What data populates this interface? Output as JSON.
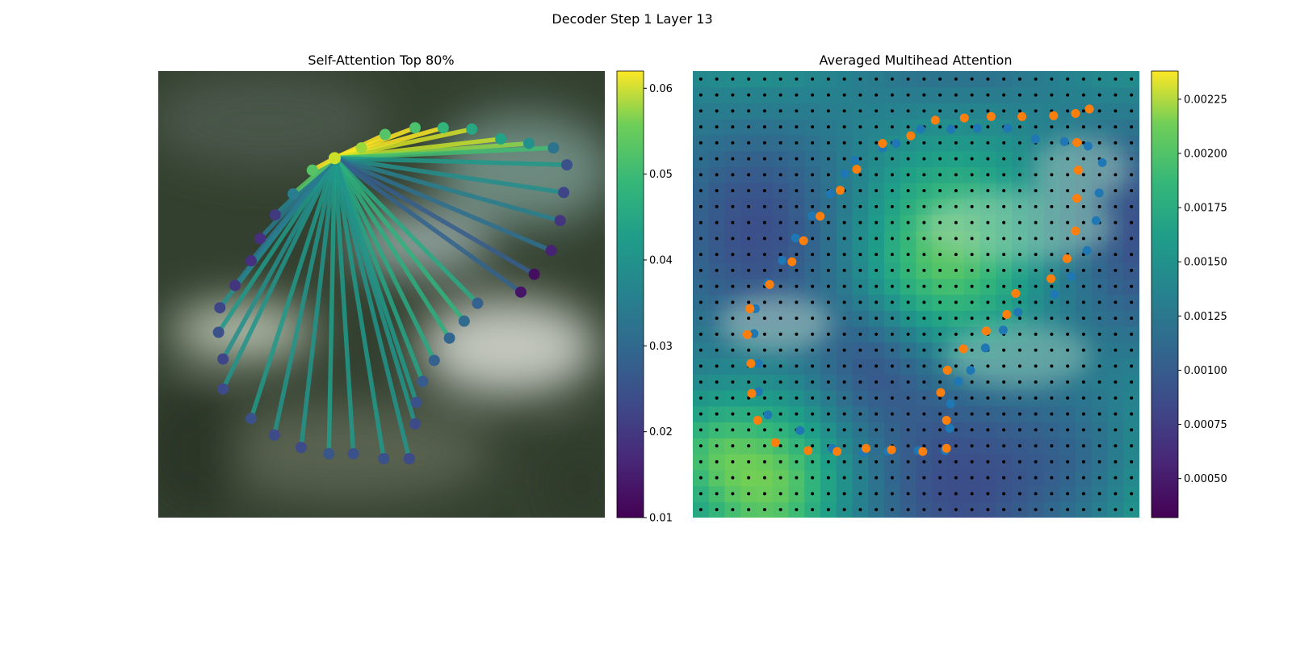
{
  "figure": {
    "title": "Decoder Step 1 Layer 13"
  },
  "chart_data": [
    {
      "type": "scatter",
      "title": "Self-Attention Top 80%",
      "description": "Attention lines from the query point to predicted keypoints over a blurred image background, colored by attention weight (viridis).",
      "colormap": "viridis",
      "colorbar": {
        "min": 0.01,
        "max": 0.062,
        "ticks": [
          0.01,
          0.02,
          0.03,
          0.04,
          0.05,
          0.06
        ],
        "tick_labels": [
          "0.01",
          "0.02",
          "0.03",
          "0.04",
          "0.05",
          "0.06"
        ]
      },
      "axes_visible": false,
      "query_point": {
        "x": 0.395,
        "y": 0.805,
        "value": 0.058
      },
      "points": [
        {
          "x": 0.455,
          "y": 0.828,
          "value": 0.054
        },
        {
          "x": 0.508,
          "y": 0.858,
          "value": 0.048
        },
        {
          "x": 0.575,
          "y": 0.873,
          "value": 0.047
        },
        {
          "x": 0.638,
          "y": 0.873,
          "value": 0.044
        },
        {
          "x": 0.702,
          "y": 0.87,
          "value": 0.041
        },
        {
          "x": 0.767,
          "y": 0.848,
          "value": 0.04
        },
        {
          "x": 0.83,
          "y": 0.838,
          "value": 0.036
        },
        {
          "x": 0.885,
          "y": 0.828,
          "value": 0.03
        },
        {
          "x": 0.915,
          "y": 0.79,
          "value": 0.023
        },
        {
          "x": 0.908,
          "y": 0.728,
          "value": 0.021
        },
        {
          "x": 0.9,
          "y": 0.665,
          "value": 0.018
        },
        {
          "x": 0.88,
          "y": 0.598,
          "value": 0.015
        },
        {
          "x": 0.842,
          "y": 0.545,
          "value": 0.012
        },
        {
          "x": 0.812,
          "y": 0.505,
          "value": 0.013
        },
        {
          "x": 0.715,
          "y": 0.48,
          "value": 0.026
        },
        {
          "x": 0.685,
          "y": 0.44,
          "value": 0.028
        },
        {
          "x": 0.652,
          "y": 0.402,
          "value": 0.027
        },
        {
          "x": 0.618,
          "y": 0.352,
          "value": 0.026
        },
        {
          "x": 0.592,
          "y": 0.305,
          "value": 0.025
        },
        {
          "x": 0.578,
          "y": 0.258,
          "value": 0.023
        },
        {
          "x": 0.575,
          "y": 0.21,
          "value": 0.022
        },
        {
          "x": 0.562,
          "y": 0.132,
          "value": 0.022
        },
        {
          "x": 0.505,
          "y": 0.132,
          "value": 0.023
        },
        {
          "x": 0.437,
          "y": 0.143,
          "value": 0.023
        },
        {
          "x": 0.382,
          "y": 0.143,
          "value": 0.024
        },
        {
          "x": 0.32,
          "y": 0.157,
          "value": 0.022
        },
        {
          "x": 0.26,
          "y": 0.185,
          "value": 0.022
        },
        {
          "x": 0.208,
          "y": 0.222,
          "value": 0.023
        },
        {
          "x": 0.145,
          "y": 0.288,
          "value": 0.022
        },
        {
          "x": 0.145,
          "y": 0.355,
          "value": 0.021
        },
        {
          "x": 0.135,
          "y": 0.415,
          "value": 0.023
        },
        {
          "x": 0.138,
          "y": 0.47,
          "value": 0.021
        },
        {
          "x": 0.172,
          "y": 0.52,
          "value": 0.018
        },
        {
          "x": 0.208,
          "y": 0.575,
          "value": 0.017
        },
        {
          "x": 0.228,
          "y": 0.625,
          "value": 0.017
        },
        {
          "x": 0.262,
          "y": 0.678,
          "value": 0.019
        },
        {
          "x": 0.302,
          "y": 0.725,
          "value": 0.032
        },
        {
          "x": 0.345,
          "y": 0.778,
          "value": 0.048
        }
      ]
    },
    {
      "type": "heatmap",
      "title": "Averaged Multihead Attention",
      "description": "Averaged attention heatmap over a 28x28 grid with grid-point markers, ground-truth (blue) and predicted (orange) keypoints.",
      "colormap": "viridis",
      "colorbar": {
        "min": 0.00032,
        "max": 0.00238,
        "ticks": [
          0.0005,
          0.00075,
          0.001,
          0.00125,
          0.0015,
          0.00175,
          0.002,
          0.00225
        ],
        "tick_labels": [
          "0.00050",
          "0.00075",
          "0.00100",
          "0.00125",
          "0.00150",
          "0.00175",
          "0.00200",
          "0.00225"
        ]
      },
      "grid_size": 28,
      "axes_visible": false,
      "series": [
        {
          "name": "",
          "color": "#1f77b4",
          "points": [
            {
              "x": 0.51,
              "y": 0.87
            },
            {
              "x": 0.578,
              "y": 0.87
            },
            {
              "x": 0.637,
              "y": 0.872
            },
            {
              "x": 0.705,
              "y": 0.872
            },
            {
              "x": 0.767,
              "y": 0.848
            },
            {
              "x": 0.832,
              "y": 0.842
            },
            {
              "x": 0.885,
              "y": 0.832
            },
            {
              "x": 0.917,
              "y": 0.795
            },
            {
              "x": 0.91,
              "y": 0.727
            },
            {
              "x": 0.903,
              "y": 0.665
            },
            {
              "x": 0.883,
              "y": 0.598
            },
            {
              "x": 0.848,
              "y": 0.54
            },
            {
              "x": 0.81,
              "y": 0.5
            },
            {
              "x": 0.728,
              "y": 0.46
            },
            {
              "x": 0.695,
              "y": 0.42
            },
            {
              "x": 0.655,
              "y": 0.38
            },
            {
              "x": 0.622,
              "y": 0.33
            },
            {
              "x": 0.595,
              "y": 0.305
            },
            {
              "x": 0.577,
              "y": 0.255
            },
            {
              "x": 0.575,
              "y": 0.2
            },
            {
              "x": 0.565,
              "y": 0.15
            },
            {
              "x": 0.505,
              "y": 0.15
            },
            {
              "x": 0.437,
              "y": 0.148
            },
            {
              "x": 0.382,
              "y": 0.145
            },
            {
              "x": 0.312,
              "y": 0.155
            },
            {
              "x": 0.24,
              "y": 0.195
            },
            {
              "x": 0.168,
              "y": 0.23
            },
            {
              "x": 0.147,
              "y": 0.282
            },
            {
              "x": 0.147,
              "y": 0.345
            },
            {
              "x": 0.137,
              "y": 0.412
            },
            {
              "x": 0.14,
              "y": 0.468
            },
            {
              "x": 0.168,
              "y": 0.525
            },
            {
              "x": 0.2,
              "y": 0.576
            },
            {
              "x": 0.23,
              "y": 0.626
            },
            {
              "x": 0.267,
              "y": 0.676
            },
            {
              "x": 0.308,
              "y": 0.725
            },
            {
              "x": 0.34,
              "y": 0.77
            },
            {
              "x": 0.363,
              "y": 0.8
            },
            {
              "x": 0.425,
              "y": 0.828
            },
            {
              "x": 0.455,
              "y": 0.838
            }
          ]
        },
        {
          "name": "",
          "color": "#ff7f0e",
          "points": [
            {
              "x": 0.543,
              "y": 0.89
            },
            {
              "x": 0.608,
              "y": 0.895
            },
            {
              "x": 0.668,
              "y": 0.898
            },
            {
              "x": 0.737,
              "y": 0.898
            },
            {
              "x": 0.808,
              "y": 0.9
            },
            {
              "x": 0.857,
              "y": 0.905
            },
            {
              "x": 0.888,
              "y": 0.915
            },
            {
              "x": 0.86,
              "y": 0.84
            },
            {
              "x": 0.863,
              "y": 0.778
            },
            {
              "x": 0.86,
              "y": 0.715
            },
            {
              "x": 0.857,
              "y": 0.642
            },
            {
              "x": 0.838,
              "y": 0.58
            },
            {
              "x": 0.802,
              "y": 0.535
            },
            {
              "x": 0.723,
              "y": 0.502
            },
            {
              "x": 0.703,
              "y": 0.455
            },
            {
              "x": 0.657,
              "y": 0.418
            },
            {
              "x": 0.606,
              "y": 0.378
            },
            {
              "x": 0.57,
              "y": 0.33
            },
            {
              "x": 0.555,
              "y": 0.28
            },
            {
              "x": 0.568,
              "y": 0.218
            },
            {
              "x": 0.568,
              "y": 0.155
            },
            {
              "x": 0.515,
              "y": 0.148
            },
            {
              "x": 0.445,
              "y": 0.152
            },
            {
              "x": 0.388,
              "y": 0.155
            },
            {
              "x": 0.323,
              "y": 0.148
            },
            {
              "x": 0.258,
              "y": 0.15
            },
            {
              "x": 0.185,
              "y": 0.168
            },
            {
              "x": 0.145,
              "y": 0.218
            },
            {
              "x": 0.132,
              "y": 0.278
            },
            {
              "x": 0.13,
              "y": 0.345
            },
            {
              "x": 0.122,
              "y": 0.41
            },
            {
              "x": 0.128,
              "y": 0.468
            },
            {
              "x": 0.172,
              "y": 0.522
            },
            {
              "x": 0.222,
              "y": 0.573
            },
            {
              "x": 0.248,
              "y": 0.62
            },
            {
              "x": 0.285,
              "y": 0.675
            },
            {
              "x": 0.33,
              "y": 0.733
            },
            {
              "x": 0.367,
              "y": 0.78
            },
            {
              "x": 0.425,
              "y": 0.838
            },
            {
              "x": 0.488,
              "y": 0.855
            }
          ]
        }
      ]
    }
  ]
}
